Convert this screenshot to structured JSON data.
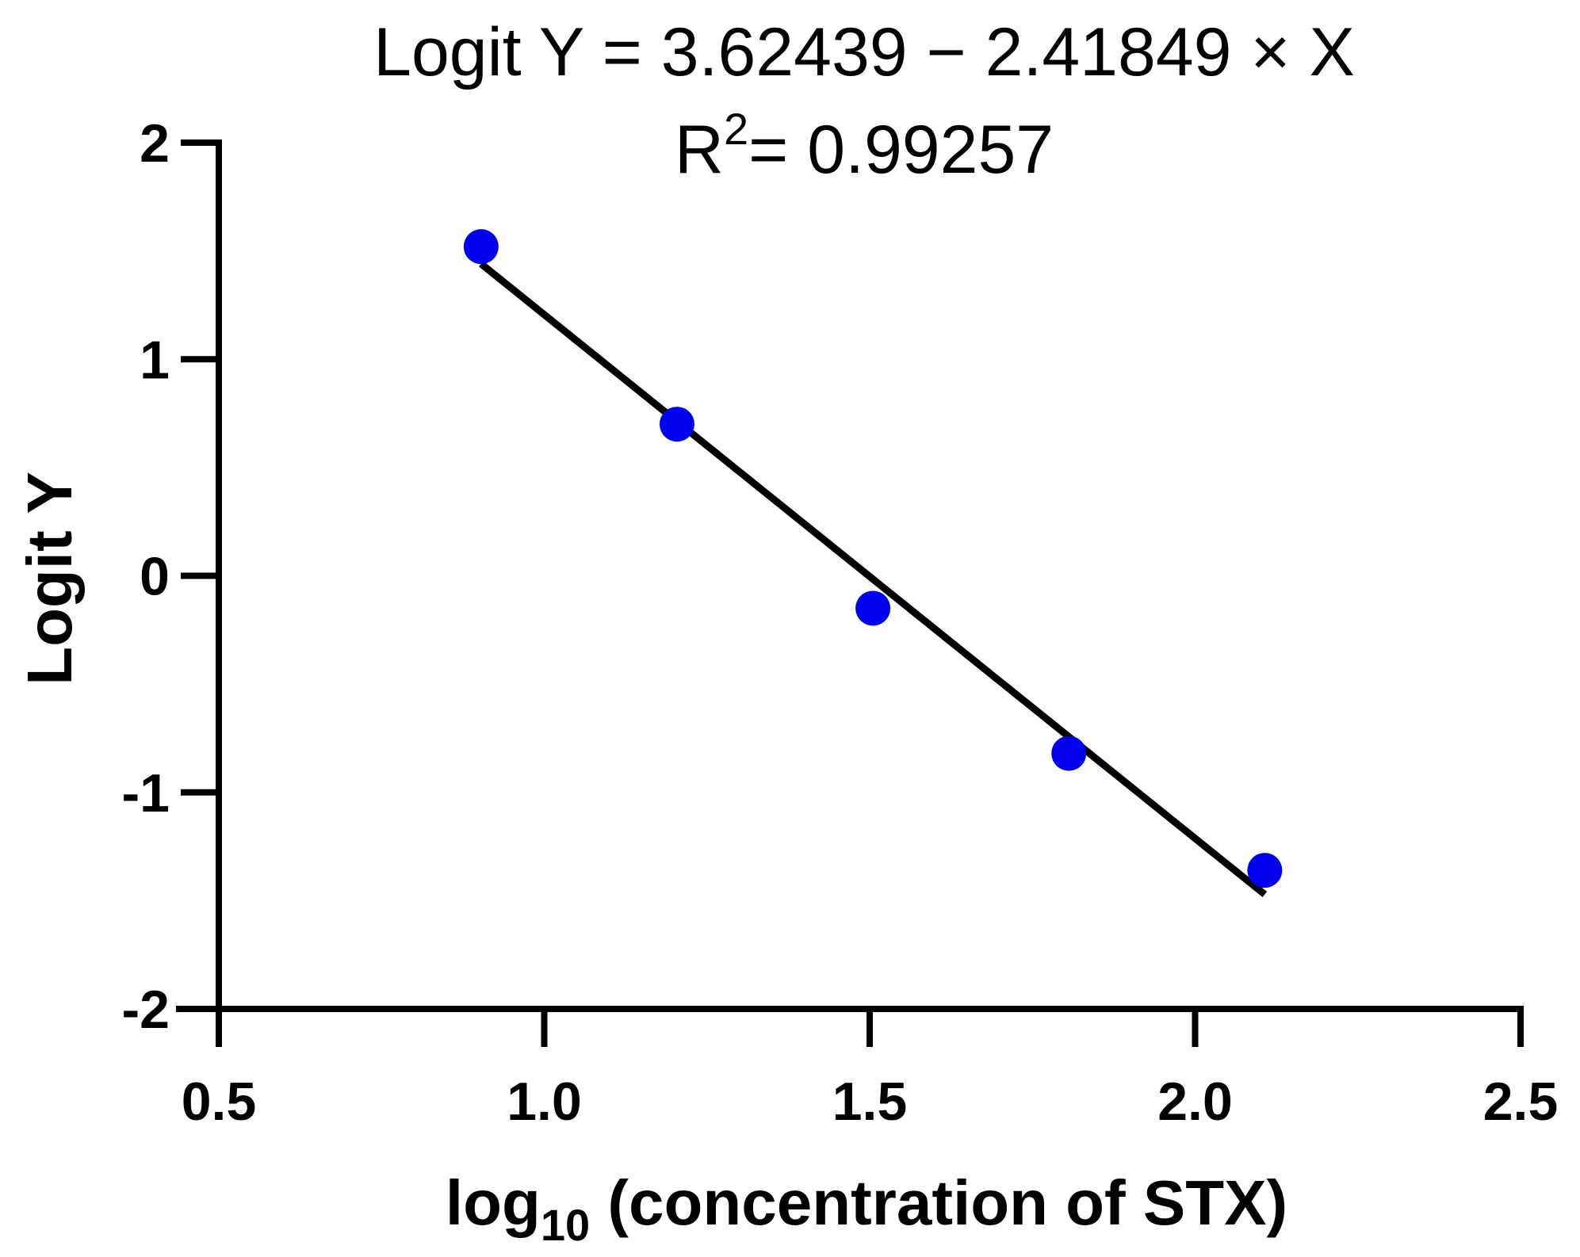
{
  "chart_data": {
    "type": "scatter",
    "title_line1": "Logit Y = 3.62439 − 2.41849 × X",
    "title_line2_prefix": "R",
    "title_line2_sup": "2",
    "title_line2_rest": "= 0.99257",
    "xlabel_prefix": "log",
    "xlabel_sub": "10",
    "xlabel_rest": " (concentration of STX)",
    "ylabel": "Logit Y",
    "xlim": [
      0.5,
      2.5
    ],
    "ylim": [
      -2,
      2
    ],
    "x_ticks": [
      "0.5",
      "1.0",
      "1.5",
      "2.0",
      "2.5"
    ],
    "y_ticks": [
      "2",
      "1",
      "0",
      "-1",
      "-2"
    ],
    "points": [
      {
        "x": 0.903,
        "y": 1.52
      },
      {
        "x": 1.204,
        "y": 0.7
      },
      {
        "x": 1.505,
        "y": -0.15
      },
      {
        "x": 1.806,
        "y": -0.82
      },
      {
        "x": 2.107,
        "y": -1.36
      }
    ],
    "fit": {
      "intercept": 3.62439,
      "slope": -2.41849,
      "x_start": 0.903,
      "x_end": 2.107
    },
    "point_color": "#0000ee",
    "line_color": "#000000",
    "grid": false
  }
}
